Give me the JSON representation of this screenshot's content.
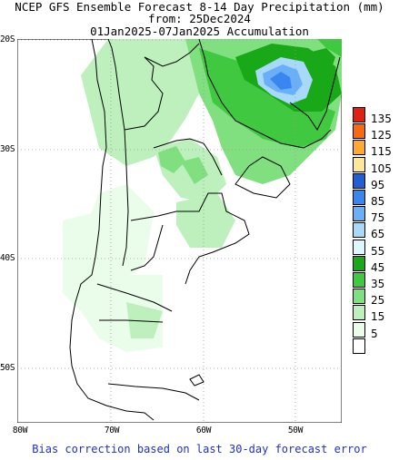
{
  "title": {
    "line1": "NCEP GFS Ensemble Forecast 8-14 Day Precipitation (mm)",
    "line2": "from: 25Dec2024",
    "line3": "01Jan2025-07Jan2025 Accumulation"
  },
  "axes": {
    "lat_labels": [
      "20S",
      "30S",
      "40S",
      "50S"
    ],
    "lon_labels": [
      "80W",
      "70W",
      "60W",
      "50W"
    ]
  },
  "legend": {
    "items": [
      {
        "label": "135",
        "color": "#e02010"
      },
      {
        "label": "125",
        "color": "#f86a10"
      },
      {
        "label": "115",
        "color": "#fcaa30"
      },
      {
        "label": "105",
        "color": "#fde79a"
      },
      {
        "label": "95",
        "color": "#1f5fd6"
      },
      {
        "label": "85",
        "color": "#3a86f0"
      },
      {
        "label": "75",
        "color": "#6ab0f8"
      },
      {
        "label": "65",
        "color": "#a8d8fa"
      },
      {
        "label": "55",
        "color": "#dff5ff"
      },
      {
        "label": "45",
        "color": "#18a818"
      },
      {
        "label": "35",
        "color": "#40c840"
      },
      {
        "label": "25",
        "color": "#80e080"
      },
      {
        "label": "15",
        "color": "#bdf0bd"
      },
      {
        "label": "5",
        "color": "#eafcea"
      },
      {
        "label": "",
        "color": "#ffffff"
      }
    ]
  },
  "footer": "Bias correction based on last 30-day forecast error"
}
